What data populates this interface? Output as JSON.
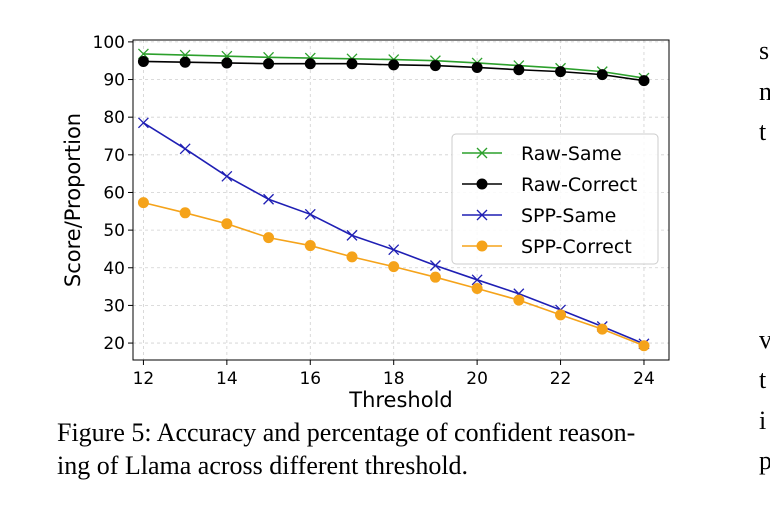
{
  "chart_data": {
    "type": "line",
    "xlabel": "Threshold",
    "ylabel": "Score/Proportion",
    "x": [
      12,
      13,
      14,
      15,
      16,
      17,
      18,
      19,
      20,
      21,
      22,
      23,
      24
    ],
    "xlim": [
      11.75,
      24.6
    ],
    "ylim": [
      15.5,
      100.5
    ],
    "xticks": [
      "12",
      "14",
      "16",
      "18",
      "20",
      "22",
      "24"
    ],
    "yticks": [
      "20",
      "30",
      "40",
      "50",
      "60",
      "70",
      "80",
      "90",
      "100"
    ],
    "grid": true,
    "legend_position": "center-right",
    "series": [
      {
        "name": "Raw-Same",
        "marker": "x",
        "color": "#2ca02c",
        "values": [
          96.8,
          96.5,
          96.2,
          95.9,
          95.7,
          95.5,
          95.3,
          95.0,
          94.4,
          93.7,
          93.0,
          92.1,
          90.4
        ]
      },
      {
        "name": "Raw-Correct",
        "marker": "o",
        "color": "#000000",
        "values": [
          94.8,
          94.6,
          94.4,
          94.2,
          94.2,
          94.2,
          93.9,
          93.7,
          93.2,
          92.6,
          92.1,
          91.3,
          89.7
        ]
      },
      {
        "name": "SPP-Same",
        "marker": "x",
        "color": "#1f1fb4",
        "values": [
          78.5,
          71.6,
          64.3,
          58.2,
          54.2,
          48.6,
          44.8,
          40.6,
          36.8,
          33.1,
          28.8,
          24.4,
          19.8
        ]
      },
      {
        "name": "SPP-Correct",
        "marker": "o",
        "color": "#f5a31a",
        "values": [
          57.3,
          54.6,
          51.7,
          48.0,
          45.9,
          42.9,
          40.3,
          37.5,
          34.5,
          31.4,
          27.5,
          23.7,
          19.3
        ]
      }
    ]
  },
  "caption": {
    "line1": "Figure 5: Accuracy and percentage of confident reason-",
    "line2": "ing of Llama across different threshold."
  },
  "side_fragments": [
    "s",
    "n",
    "t",
    "v",
    "t",
    "i",
    "p"
  ]
}
